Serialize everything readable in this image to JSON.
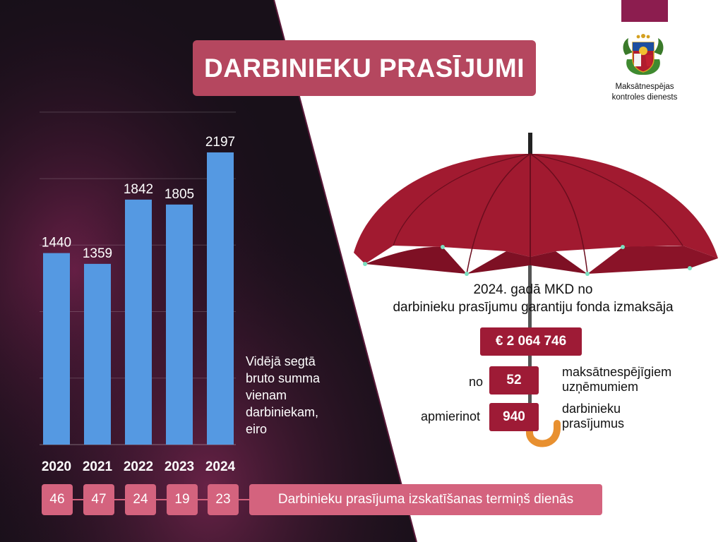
{
  "page": {
    "title": "DARBINIEKU PRASĪJUMI",
    "organization": "Maksātnespējas kontroles dienests",
    "organization_lines": [
      "Maksātnespējas",
      "kontroles dienests"
    ],
    "colors": {
      "bar": "#5599e2",
      "title_bg": "#b5475f",
      "accent_dark": "#9e1b36",
      "term_box": "#d4637e",
      "corner_tab": "#8c1d4f",
      "umbrella": "#a11a30",
      "handle": "#e89030"
    }
  },
  "chart_data": {
    "type": "bar",
    "categories": [
      "2020",
      "2021",
      "2022",
      "2023",
      "2024"
    ],
    "values": [
      1440,
      1359,
      1842,
      1805,
      2197
    ],
    "ylim": [
      0,
      2600
    ],
    "grid": true,
    "value_label_description": "Vidējā segtā bruto summa vienam darbiniekam, eiro",
    "value_label_lines": [
      "Vidējā segtā",
      "bruto summa",
      "vienam",
      "darbiniekam,",
      "eiro"
    ]
  },
  "terms": {
    "values": [
      "46",
      "47",
      "24",
      "19",
      "23"
    ],
    "label": "Darbinieku prasījuma izskatīšanas termiņš dienās"
  },
  "fund": {
    "line1": "2024. gadā MKD no",
    "line2": "darbinieku prasījumu garantiju fonda izmaksāja",
    "amount": "€ 2 064 746",
    "companies_prefix": "no",
    "companies_count": "52",
    "companies_text_1": "maksātnespējīgiem",
    "companies_text_2": "uzņēmumiem",
    "claims_prefix": "apmierinot",
    "claims_count": "940",
    "claims_text_1": "darbinieku",
    "claims_text_2": "prasījumus"
  }
}
